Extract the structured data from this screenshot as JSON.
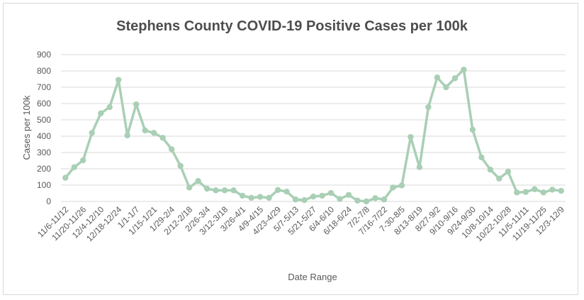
{
  "chart_data": {
    "type": "line",
    "title": "Stephens County COVID-19 Positive Cases per 100k",
    "xlabel": "Date Range",
    "ylabel": "Cases per 100k",
    "ylim": [
      0,
      900
    ],
    "yticks": [
      0,
      100,
      200,
      300,
      400,
      500,
      600,
      700,
      800,
      900
    ],
    "grid": true,
    "legend": "none",
    "line_color": "#a9cfb5",
    "x": [
      "11/6-11/12",
      "",
      "11/20-11/26",
      "",
      "12/4-12/10",
      "",
      "12/18-12/24",
      "",
      "1/1-1/7",
      "",
      "1/15-1/21",
      "",
      "1/29-2/4",
      "",
      "2/12-2/18",
      "",
      "2/26-3/4",
      "",
      "3/12-3/18",
      "",
      "3/26-4/1",
      "",
      "4/9-4/15",
      "",
      "4/23-4/29",
      "",
      "5/7-5/13",
      "",
      "5/21-5/27",
      "",
      "6/4-6/10",
      "",
      "6/18-6/24",
      "",
      "7/2-7/8",
      "",
      "7/16-7/22",
      "",
      "7-30-8/5",
      "",
      "8/13-8/19",
      "",
      "8/27-9/2",
      "",
      "9/10-9/16",
      "",
      "9/24-9/30",
      "",
      "10/8-10/14",
      "",
      "10/22-10/28",
      "",
      "11/5-11/11",
      "",
      "11/19-11/25",
      "",
      "12/3-12/9"
    ],
    "series": [
      {
        "values": [
          145,
          210,
          252,
          420,
          540,
          578,
          745,
          405,
          595,
          435,
          420,
          390,
          320,
          218,
          85,
          125,
          78,
          68,
          68,
          68,
          35,
          22,
          28,
          22,
          70,
          60,
          12,
          8,
          30,
          35,
          52,
          15,
          40,
          5,
          0,
          20,
          12,
          85,
          98,
          395,
          210,
          578,
          760,
          700,
          755,
          808,
          440,
          270,
          195,
          140,
          183,
          55,
          58,
          75,
          55,
          72,
          65
        ]
      }
    ]
  }
}
